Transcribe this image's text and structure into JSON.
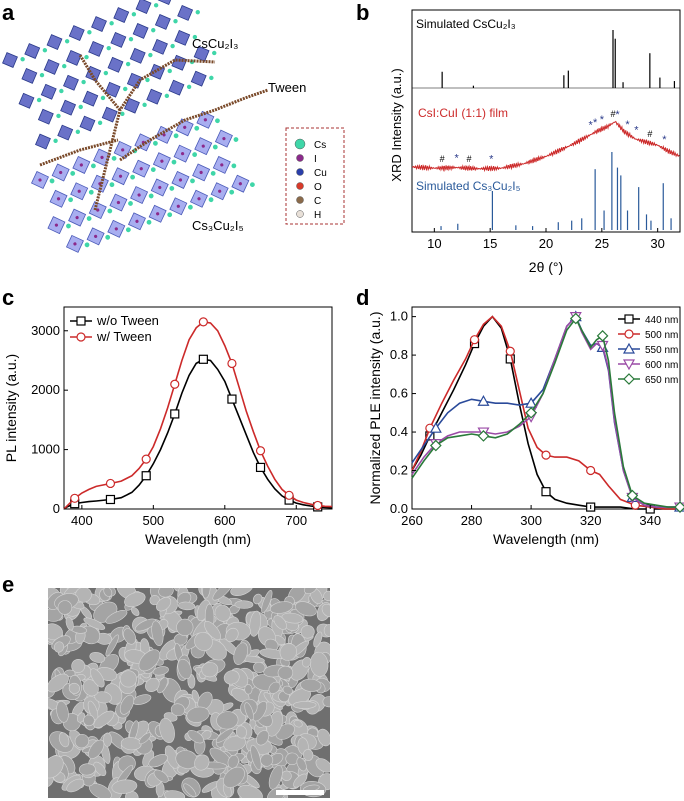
{
  "panels": {
    "a": "a",
    "b": "b",
    "c": "c",
    "d": "d",
    "e": "e"
  },
  "panel_a": {
    "label_cscu2i3": "CsCu₂I₃",
    "label_tween": "Tween",
    "label_cs3cu2i5": "Cs₃Cu₂I₅",
    "legend": [
      {
        "symbol": "Cs",
        "color": "#3fd6a8"
      },
      {
        "symbol": "I",
        "color": "#8b2a8b"
      },
      {
        "symbol": "Cu",
        "color": "#2a3faa"
      },
      {
        "symbol": "O",
        "color": "#d83a2a"
      },
      {
        "symbol": "C",
        "color": "#8a6a4a"
      },
      {
        "symbol": "H",
        "color": "#e8e0d8"
      }
    ]
  },
  "chart_data": [
    {
      "id": "b",
      "type": "line",
      "xlabel": "2θ (°)",
      "ylabel": "XRD Intensity (a.u.)",
      "xlim": [
        8,
        32
      ],
      "xticks": [
        10,
        15,
        20,
        25,
        30
      ],
      "series": [
        {
          "name": "Simulated CsCu₂I₃",
          "color": "#000000",
          "kind": "stick",
          "x": [
            10.7,
            13.5,
            21.6,
            22.0,
            26.0,
            26.2,
            26.9,
            29.3,
            30.2,
            31.5
          ],
          "y": [
            0.28,
            0.04,
            0.22,
            0.3,
            1.0,
            0.85,
            0.1,
            0.6,
            0.18,
            0.12
          ]
        },
        {
          "name": "CsI:CuI (1:1) film",
          "color": "#cc2a2a",
          "kind": "line",
          "x": [
            8,
            10,
            12,
            14,
            16,
            18,
            20,
            22,
            23.5,
            24.5,
            25.5,
            26.2,
            27,
            28,
            29,
            30,
            31,
            32
          ],
          "y": [
            0.05,
            0.03,
            0.04,
            0.02,
            0.03,
            0.1,
            0.22,
            0.38,
            0.52,
            0.62,
            0.7,
            0.78,
            0.62,
            0.5,
            0.45,
            0.4,
            0.3,
            0.22
          ],
          "markers_hash": [
            10.7,
            13.1,
            26.0,
            29.3
          ],
          "markers_star": [
            12.0,
            15.1,
            24.0,
            24.4,
            25.0,
            26.4,
            27.3,
            28.1,
            30.6
          ]
        },
        {
          "name": "Simulated Cs₃Cu₂I₅",
          "color": "#2a5a9a",
          "kind": "stick",
          "x": [
            10.6,
            12.1,
            15.2,
            17.3,
            18.8,
            21.1,
            22.3,
            23.2,
            24.4,
            25.2,
            25.9,
            26.4,
            26.7,
            27.3,
            28.3,
            29.0,
            29.4,
            30.5,
            31.2
          ],
          "y": [
            0.05,
            0.08,
            0.5,
            0.06,
            0.05,
            0.1,
            0.12,
            0.15,
            0.78,
            0.25,
            1.0,
            0.8,
            0.7,
            0.25,
            0.55,
            0.2,
            0.12,
            0.6,
            0.15
          ]
        }
      ]
    },
    {
      "id": "c",
      "type": "line",
      "xlabel": "Wavelength (nm)",
      "ylabel": "PL intensity (a.u.)",
      "xlim": [
        375,
        750
      ],
      "ylim": [
        0,
        3400
      ],
      "xticks": [
        400,
        500,
        600,
        700
      ],
      "yticks": [
        0,
        1000,
        2000,
        3000
      ],
      "series": [
        {
          "name": "w/o Tween",
          "color": "#000000",
          "marker": "square",
          "x": [
            375,
            380,
            390,
            400,
            410,
            420,
            440,
            455,
            470,
            480,
            490,
            500,
            510,
            520,
            530,
            540,
            550,
            560,
            570,
            580,
            590,
            600,
            610,
            620,
            630,
            640,
            650,
            660,
            670,
            680,
            690,
            700,
            710,
            720,
            730,
            740,
            750
          ],
          "y": [
            0,
            40,
            90,
            110,
            125,
            135,
            160,
            190,
            280,
            400,
            560,
            760,
            1000,
            1280,
            1600,
            1950,
            2250,
            2450,
            2520,
            2500,
            2350,
            2150,
            1850,
            1550,
            1250,
            950,
            700,
            500,
            340,
            220,
            150,
            100,
            70,
            50,
            35,
            25,
            20
          ]
        },
        {
          "name": "w/   Tween",
          "color": "#cc2a2a",
          "marker": "circle",
          "x": [
            375,
            380,
            390,
            400,
            410,
            420,
            440,
            455,
            470,
            480,
            490,
            500,
            510,
            520,
            530,
            540,
            550,
            560,
            570,
            580,
            590,
            600,
            610,
            620,
            630,
            640,
            650,
            660,
            670,
            680,
            690,
            700,
            710,
            720,
            730,
            740,
            750
          ],
          "y": [
            0,
            60,
            180,
            270,
            330,
            380,
            430,
            470,
            560,
            680,
            840,
            1050,
            1350,
            1700,
            2100,
            2500,
            2850,
            3050,
            3150,
            3130,
            3000,
            2750,
            2450,
            2050,
            1650,
            1300,
            980,
            720,
            500,
            330,
            230,
            150,
            110,
            80,
            60,
            45,
            40
          ]
        }
      ],
      "legend_position": "top-left"
    },
    {
      "id": "d",
      "type": "line",
      "xlabel": "Wavelength (nm)",
      "ylabel": "Normalized PLE intensity (a.u.)",
      "xlim": [
        260,
        350
      ],
      "ylim": [
        0,
        1.05
      ],
      "xticks": [
        260,
        280,
        300,
        320,
        340
      ],
      "yticks": [
        0.0,
        0.2,
        0.4,
        0.6,
        0.8,
        1.0
      ],
      "series": [
        {
          "name": "440 nm",
          "color": "#000000",
          "marker": "square",
          "x": [
            260,
            263,
            266,
            270,
            274,
            278,
            281,
            284,
            287,
            290,
            293,
            296,
            299,
            302,
            305,
            308,
            312,
            316,
            320,
            325,
            330,
            335,
            340,
            345,
            350
          ],
          "y": [
            0.2,
            0.28,
            0.38,
            0.5,
            0.62,
            0.75,
            0.86,
            0.95,
            1.0,
            0.94,
            0.78,
            0.55,
            0.34,
            0.18,
            0.09,
            0.05,
            0.03,
            0.02,
            0.01,
            0.01,
            0.01,
            0.0,
            0.0,
            0.0,
            0.0
          ]
        },
        {
          "name": "500 nm",
          "color": "#cc2a2a",
          "marker": "circle",
          "x": [
            260,
            263,
            266,
            270,
            274,
            278,
            281,
            284,
            287,
            290,
            293,
            296,
            299,
            302,
            305,
            308,
            312,
            316,
            320,
            323,
            326,
            330,
            335,
            340,
            345,
            350
          ],
          "y": [
            0.2,
            0.3,
            0.42,
            0.55,
            0.67,
            0.78,
            0.88,
            0.96,
            1.0,
            0.95,
            0.82,
            0.62,
            0.42,
            0.32,
            0.28,
            0.27,
            0.27,
            0.25,
            0.2,
            0.18,
            0.12,
            0.05,
            0.02,
            0.01,
            0.0,
            0.0
          ]
        },
        {
          "name": "550 nm",
          "color": "#2a4a9a",
          "marker": "triangle",
          "x": [
            260,
            264,
            268,
            272,
            276,
            280,
            284,
            288,
            292,
            296,
            300,
            304,
            308,
            312,
            315,
            317,
            320,
            322,
            324,
            326,
            328,
            331,
            334,
            338,
            342,
            346,
            350
          ],
          "y": [
            0.24,
            0.33,
            0.42,
            0.5,
            0.55,
            0.57,
            0.56,
            0.55,
            0.55,
            0.54,
            0.55,
            0.62,
            0.78,
            0.95,
            1.0,
            0.93,
            0.85,
            0.86,
            0.84,
            0.72,
            0.45,
            0.2,
            0.06,
            0.02,
            0.01,
            0.01,
            0.01
          ]
        },
        {
          "name": "600 nm",
          "color": "#9a4aa6",
          "marker": "triangle-down",
          "x": [
            260,
            264,
            268,
            272,
            276,
            280,
            284,
            288,
            292,
            296,
            300,
            304,
            308,
            312,
            315,
            317,
            320,
            322,
            324,
            326,
            328,
            331,
            334,
            338,
            342,
            346,
            350
          ],
          "y": [
            0.18,
            0.27,
            0.34,
            0.38,
            0.4,
            0.4,
            0.4,
            0.39,
            0.4,
            0.43,
            0.48,
            0.6,
            0.78,
            0.95,
            1.0,
            0.92,
            0.83,
            0.86,
            0.85,
            0.73,
            0.46,
            0.2,
            0.06,
            0.02,
            0.01,
            0.01,
            0.01
          ]
        },
        {
          "name": "650 nm",
          "color": "#2a7a3a",
          "marker": "diamond",
          "x": [
            260,
            264,
            268,
            272,
            276,
            280,
            284,
            288,
            292,
            296,
            300,
            304,
            308,
            312,
            315,
            317,
            320,
            322,
            324,
            326,
            328,
            331,
            334,
            338,
            342,
            346,
            350
          ],
          "y": [
            0.16,
            0.25,
            0.33,
            0.37,
            0.38,
            0.39,
            0.38,
            0.37,
            0.39,
            0.44,
            0.5,
            0.6,
            0.76,
            0.93,
            0.99,
            0.93,
            0.84,
            0.88,
            0.9,
            0.77,
            0.5,
            0.22,
            0.07,
            0.03,
            0.02,
            0.01,
            0.01
          ]
        }
      ],
      "legend_position": "top-right"
    }
  ]
}
